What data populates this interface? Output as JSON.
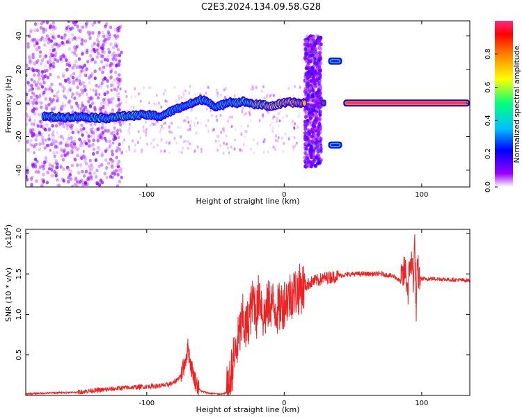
{
  "title": "C2E3.2024.134.09.58.G28",
  "chart_data": [
    {
      "type": "heatmap",
      "xlabel": "Height of straight line (km)",
      "ylabel": "Frequency (Hz)",
      "xlim": [
        -188,
        135
      ],
      "ylim": [
        -50,
        49
      ],
      "xticks": [
        -100,
        0,
        100
      ],
      "yticks": [
        -40,
        -20,
        0,
        20,
        40
      ],
      "colorbar": {
        "label": "Normalized spectral amplitude",
        "ticks": [
          "0.0",
          "0.2",
          "0.4",
          "0.6",
          "0.8"
        ],
        "tick_values": [
          0.0,
          0.2,
          0.4,
          0.6,
          0.8
        ],
        "range": [
          0,
          1
        ],
        "colors": [
          "#ffffff",
          "#9a00ff",
          "#0000ff",
          "#00bfff",
          "#00ff7f",
          "#ffff00",
          "#ff7f00",
          "#ff0000",
          "#ff2a80"
        ]
      },
      "ridge": {
        "x": [
          -175,
          -160,
          -150,
          -140,
          -130,
          -120,
          -110,
          -100,
          -95,
          -90,
          -80,
          -70,
          -60,
          -55,
          -50,
          -45,
          -40,
          -35,
          -30,
          -25,
          -20,
          -15,
          -10,
          -5,
          0,
          5,
          10,
          15
        ],
        "y": [
          -8,
          -8.5,
          -8,
          -8.5,
          -9,
          -8,
          -7.5,
          -7,
          -7.5,
          -8,
          -4,
          -1,
          2,
          1,
          -3,
          -1,
          1,
          0,
          1,
          0,
          -1,
          -1,
          -2,
          -1,
          0,
          0.5,
          0,
          0
        ],
        "amplitude": [
          0.4,
          0.45,
          0.4,
          0.4,
          0.45,
          0.5,
          0.45,
          0.4,
          0.35,
          0.35,
          0.3,
          0.35,
          0.4,
          0.35,
          0.3,
          0.35,
          0.4,
          0.4,
          0.45,
          0.5,
          0.7,
          0.6,
          0.8,
          0.7,
          0.85,
          0.75,
          0.9,
          0.9
        ]
      },
      "tone_lines": [
        {
          "x_start": 43,
          "x_end": 135,
          "y": 0,
          "amplitude": 1.0
        },
        {
          "x_start": 32,
          "x_end": 42,
          "y": 25,
          "amplitude": 0.2
        },
        {
          "x_start": 32,
          "x_end": 42,
          "y": -25,
          "amplitude": 0.2
        }
      ]
    },
    {
      "type": "line",
      "xlabel": "Height of straight line (km)",
      "ylabel": "SNR (10 * v/v)",
      "y_multiplier": "(x10",
      "y_multiplier_exp": "4",
      "xlim": [
        -188,
        135
      ],
      "ylim": [
        0,
        2.05
      ],
      "xticks": [
        -100,
        0,
        100
      ],
      "yticks": [
        0.5,
        1.0,
        1.5,
        2.0
      ],
      "ytick_labels": [
        "0.5",
        "1.0",
        "1.5",
        "2.0"
      ],
      "color": "#ee2222",
      "series": [
        {
          "x": [
            -188,
            -170,
            -150,
            -140,
            -130,
            -120,
            -110,
            -100,
            -90,
            -85,
            -80,
            -75,
            -72,
            -70,
            -68,
            -65,
            -62,
            -60,
            -55,
            -50,
            -45,
            -42,
            -40,
            -38,
            -35,
            -32,
            -30,
            -28,
            -25,
            -22,
            -20,
            -18,
            -15,
            -12,
            -10,
            -5,
            0,
            5,
            10,
            15,
            20,
            30,
            40,
            50,
            60,
            70,
            80,
            85,
            88,
            90,
            92,
            94,
            95,
            96,
            97,
            98,
            100,
            110,
            120,
            135
          ],
          "y": [
            0.02,
            0.03,
            0.04,
            0.06,
            0.07,
            0.09,
            0.1,
            0.11,
            0.12,
            0.13,
            0.16,
            0.25,
            0.42,
            0.6,
            0.38,
            0.2,
            0.08,
            0.05,
            0.03,
            0.02,
            0.02,
            0.03,
            0.1,
            0.35,
            0.55,
            0.8,
            0.95,
            0.8,
            1.0,
            1.2,
            1.0,
            1.3,
            0.95,
            1.1,
            1.15,
            1.05,
            1.15,
            1.25,
            1.3,
            1.35,
            1.4,
            1.45,
            1.48,
            1.5,
            1.5,
            1.5,
            1.47,
            1.4,
            1.55,
            1.3,
            1.7,
            1.45,
            1.9,
            1.0,
            1.6,
            1.45,
            1.44,
            1.44,
            1.43,
            1.42
          ]
        }
      ]
    }
  ]
}
